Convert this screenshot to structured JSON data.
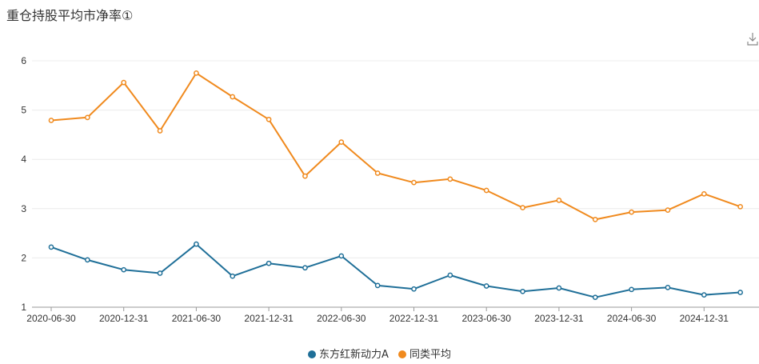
{
  "title": "重仓持股平均市净率①",
  "icons": {
    "download": "download-icon"
  },
  "chart_data": {
    "type": "line",
    "x": [
      "2020-06-30",
      "2020-09-30",
      "2020-12-31",
      "2021-03-31",
      "2021-06-30",
      "2021-09-30",
      "2021-12-31",
      "2022-03-31",
      "2022-06-30",
      "2022-09-30",
      "2022-12-31",
      "2023-03-31",
      "2023-06-30",
      "2023-09-30",
      "2023-12-31",
      "2024-03-31",
      "2024-06-30",
      "2024-09-30",
      "2024-12-31",
      "2025-03-31"
    ],
    "x_tick_labels": [
      "2020-06-30",
      "2020-12-31",
      "2021-06-30",
      "2021-12-31",
      "2022-06-30",
      "2022-12-31",
      "2023-06-30",
      "2023-12-31",
      "2024-06-30",
      "2024-12-31"
    ],
    "series": [
      {
        "name": "东方红新动力A",
        "color": "#1f6f98",
        "values": [
          2.22,
          1.96,
          1.76,
          1.69,
          2.28,
          1.63,
          1.89,
          1.8,
          2.04,
          1.44,
          1.37,
          1.65,
          1.43,
          1.32,
          1.39,
          1.2,
          1.36,
          1.4,
          1.25,
          1.3
        ]
      },
      {
        "name": "同类平均",
        "color": "#f08a1e",
        "values": [
          4.79,
          4.85,
          5.56,
          4.58,
          5.75,
          5.27,
          4.81,
          3.66,
          4.35,
          3.72,
          3.53,
          3.6,
          3.37,
          3.02,
          3.17,
          2.78,
          2.93,
          2.97,
          3.3,
          3.04
        ]
      }
    ],
    "ylim": [
      1,
      6
    ],
    "yticks": [
      "1",
      "2",
      "3",
      "4",
      "5",
      "6"
    ],
    "grid": true,
    "legend_position": "bottom"
  }
}
